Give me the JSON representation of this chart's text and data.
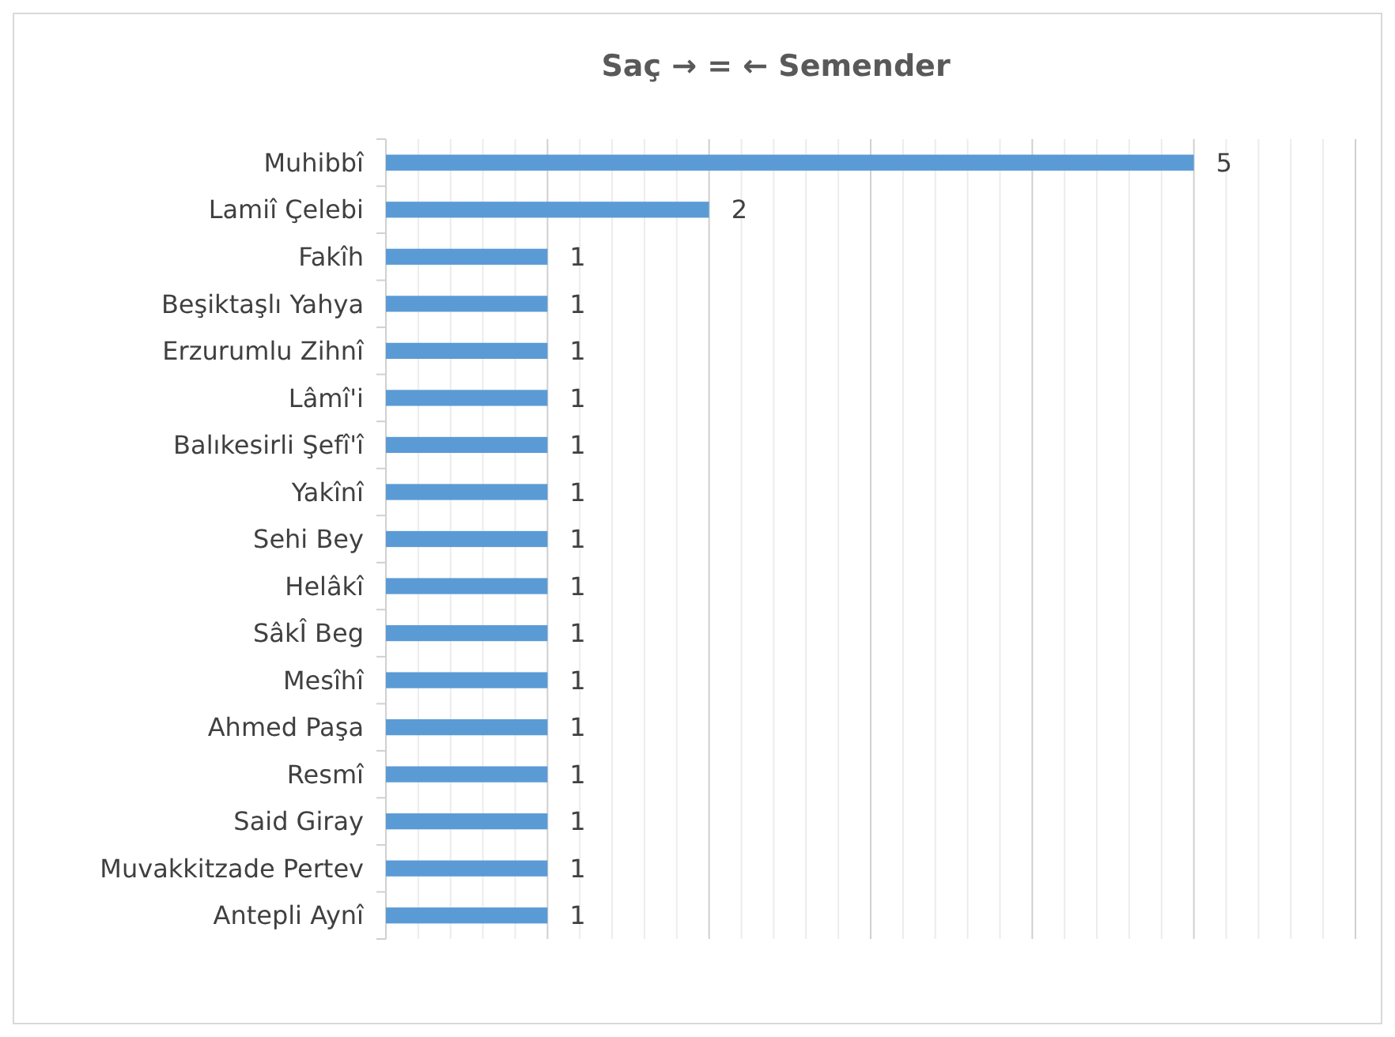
{
  "chart_data": {
    "type": "bar",
    "orientation": "horizontal",
    "title": "Saç → = ← Semender",
    "categories": [
      "Muhibbî",
      "Lamiî Çelebi",
      "Fakîh",
      "Beşiktaşlı Yahya",
      "Erzurumlu Zihnî",
      "Lâmî'i",
      "Balıkesirli Şefî'î",
      "Yakînî",
      "Sehi Bey",
      "Helâkî",
      "SâkÎ Beg",
      "Mesîhî",
      "Ahmed Paşa",
      "Resmî",
      "Said Giray",
      "Muvakkitzade Pertev",
      "Antepli Aynî"
    ],
    "values": [
      5,
      2,
      1,
      1,
      1,
      1,
      1,
      1,
      1,
      1,
      1,
      1,
      1,
      1,
      1,
      1,
      1
    ],
    "color": "#5b9bd5",
    "data_labels": true,
    "grid": "x",
    "tick_labels": "y",
    "xlim": [
      0,
      6
    ],
    "xticks": [
      {
        "value": 0,
        "label": null
      },
      {
        "value": 0.2,
        "label": null
      },
      {
        "value": 0.4,
        "label": null
      },
      {
        "value": 0.6,
        "label": null
      },
      {
        "value": 0.8,
        "label": null
      },
      {
        "value": 1,
        "label": null
      },
      {
        "value": 1.2,
        "label": null
      },
      {
        "value": 1.4,
        "label": null
      },
      {
        "value": 1.6,
        "label": null
      },
      {
        "value": 1.8,
        "label": null
      },
      {
        "value": 2,
        "label": null
      },
      {
        "value": 2.2,
        "label": null
      },
      {
        "value": 2.4,
        "label": null
      },
      {
        "value": 2.6,
        "label": null
      },
      {
        "value": 2.8,
        "label": null
      },
      {
        "value": 3,
        "label": null
      },
      {
        "value": 3.2,
        "label": null
      },
      {
        "value": 3.4,
        "label": null
      },
      {
        "value": 3.6,
        "label": null
      },
      {
        "value": 3.8,
        "label": null
      },
      {
        "value": 4,
        "label": null
      },
      {
        "value": 4.2,
        "label": null
      },
      {
        "value": 4.4,
        "label": null
      },
      {
        "value": 4.6,
        "label": null
      },
      {
        "value": 4.8,
        "label": null
      },
      {
        "value": 5,
        "label": null
      },
      {
        "value": 5.2,
        "label": null
      },
      {
        "value": 5.4,
        "label": null
      },
      {
        "value": 5.6,
        "label": null
      },
      {
        "value": 5.8,
        "label": null
      },
      {
        "value": 6,
        "label": null
      }
    ]
  }
}
